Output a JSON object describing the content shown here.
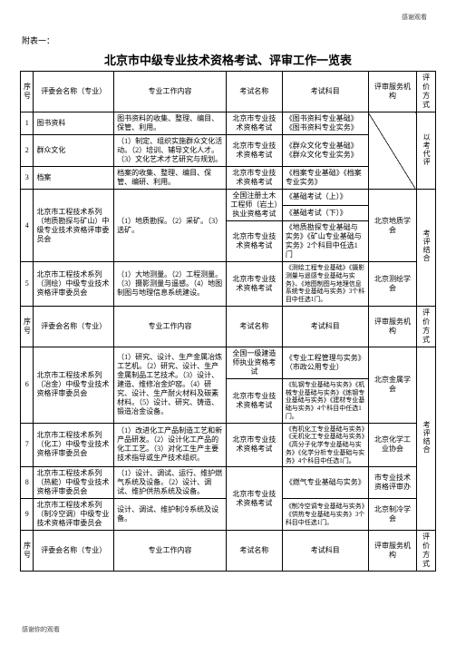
{
  "header_note": "感谢观看",
  "footer_note": "感谢你的观看",
  "attachment_label": "附表一：",
  "title": "北京市中级专业技术资格考试、评审工作一览表",
  "headers": {
    "idx": "序号",
    "committee": "评委会名称（专业）",
    "work": "专业工作内容",
    "exam": "考试名称",
    "subjects": "考试科目",
    "org": "评审服务机构",
    "mode": "评价方式"
  },
  "mode_vert1": "以考代评",
  "mode_vert2": "考评结合",
  "mode_vert3": "考评结合",
  "rows": {
    "r1": {
      "idx": "1",
      "committee": "图书资料",
      "work": "图书资料的收集、整理、编目、保管、利用。",
      "exam": "北京市专业技术资格考试",
      "subjects": "《图书资料专业基础》《图书资料专业实务》"
    },
    "r2": {
      "idx": "2",
      "committee": "群众文化",
      "work": "（1）制定、组织实施群众文化活动。（2）培训、辅导文化人才。（3）文化艺术才艺研究与规划。",
      "exam": "北京市专业技术资格考试",
      "subjects": "《群众文化专业基础》《群众文化专业实务》"
    },
    "r3": {
      "idx": "3",
      "committee": "档案",
      "work": "档案的收集、整理、编目、保管、编研、利用。",
      "exam": "北京市专业技术资格考试",
      "subjects": "《档案专业基础》《档案专业实务》"
    },
    "r4": {
      "idx": "4",
      "committee": "北京市工程技术系列（地质勘探与矿山）中级专业技术资格评审委员会",
      "work": "（1）地质勘探。（2）采矿。（3）选矿。",
      "exam1": "全国注册土木工程师（岩土）执业资格考试",
      "subjects1_a": "《基础考试（上）》",
      "subjects1_b": "《基础考试（下）》",
      "exam2": "北京市专业技术资格考试",
      "subjects2": "《地质勘探专业基础与实务》《矿山专业基础与实务》2个科目中任选1门",
      "org": "北京地质学会"
    },
    "r5": {
      "idx": "5",
      "committee": "北京市工程技术系列（测绘）中级专业技术资格评审委员会",
      "work": "（1）大地测量。（2）工程测量。（3）摄影测量与遥感。（4）地图制图与地理信息系统建设。",
      "exam": "北京市专业技术资格考试",
      "subjects": "《测绘工程专业基础》《摄影测量与遥感专业基础与实务》、《地图制图与地理信息系统专业基础与实务》3个科目中任选1门。",
      "org": "北京测绘学会"
    },
    "r6": {
      "idx": "6",
      "committee": "北京市工程技术系列（冶金）中级专业技术资格评审委员会",
      "work": "（1）研究、设计、生产金属冶炼工艺机。（2）研究、设计、生产金属制品工艺技术。（3）设计、建造、维修冶金炉窑。（4）研究、设计、生产耐火材料及碳素材料。（5）设计、研究、铸造、锻造冶金设备。",
      "exam1": "全国一级建造师执业资格考试",
      "subjects1": "《专业工程管理与实务》（市政公用专业）",
      "exam2": "北京市专业技术资格考试",
      "subjects2": "《轧钢专业基础与实务》《机械专业基础与实务》《炼钢专业基础与实务》《建材专业基础与实务》4个科目中任选1门。",
      "org": "北京金属学会"
    },
    "r7": {
      "idx": "7",
      "committee": "北京市工程技术系列（化工）中级专业技术资格评审委员会",
      "work": "（1）改进化工产品制造工艺和新产品研发。（2）设计化工产品的化工工艺。（3）对化工生产主要技术指导或生产技术组织。",
      "exam": "北京市专业技术资格考试",
      "subjects": "《有机化工专业基础与实务》《无机化工专业基础与实务》《高分子化学专业基础与实务》《化学分析专业基础与实务》4个科目中任选1门。",
      "org": "北京化学工业协会"
    },
    "r8": {
      "idx": "8",
      "committee": "北京市工程技术系列（热能）中级专业技术资格评审委员会",
      "work": "（1）设计、调试、运行、维护燃气系统及设备。（2）设计、调试、维护供热系统及设备。",
      "exam": "北京市专业技术资格考试",
      "subjects": "《燃气专业基础与实务》",
      "org": "市专业技术资格评审办"
    },
    "r9": {
      "idx": "9",
      "committee": "北京市工程技术系列（制冷空调）中级专业技术资格评审委员会",
      "work": "设计、调试、维护制冷系统及设备。",
      "subjects": "《制冷空调专业基础与实务》《供热专业基础与实务》3个科目中任选1门。",
      "org": "北京制冷学会"
    }
  }
}
